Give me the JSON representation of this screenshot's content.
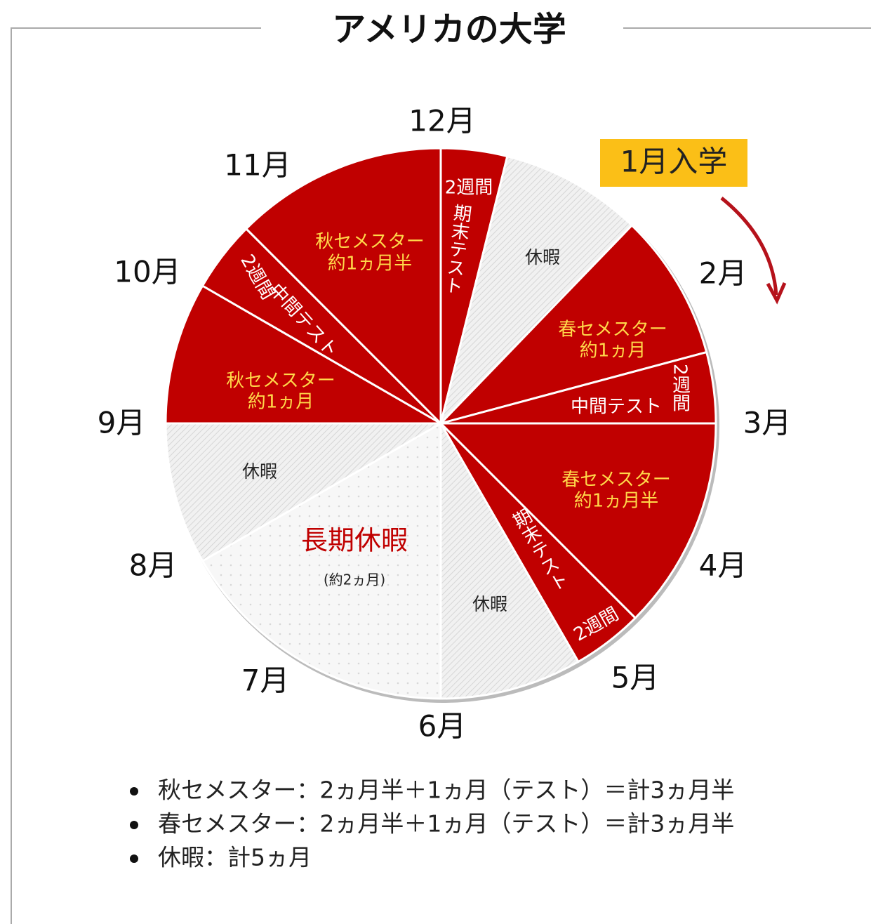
{
  "title": "アメリカの大学",
  "callout": "1月入学",
  "months": [
    "2月",
    "3月",
    "4月",
    "5月",
    "6月",
    "7月",
    "8月",
    "9月",
    "10月",
    "11月",
    "12月"
  ],
  "segments": [
    {
      "texts": [
        "2週間",
        "期末テスト"
      ]
    },
    {
      "texts": [
        "休暇"
      ]
    },
    {
      "texts": [
        "春セメスター",
        "約1ヵ月"
      ]
    },
    {
      "texts": [
        "中間テスト",
        "2週間"
      ]
    },
    {
      "texts": [
        "春セメスター",
        "約1ヵ月半"
      ]
    },
    {
      "texts": [
        "期末テスト",
        "2週間"
      ]
    },
    {
      "texts": [
        "休暇"
      ]
    },
    {
      "texts": [
        "長期休暇",
        "(約2ヵ月)"
      ]
    },
    {
      "texts": [
        "休暇"
      ]
    },
    {
      "texts": [
        "秋セメスター",
        "約1ヵ月"
      ]
    },
    {
      "texts": [
        "2週間",
        "中間テスト"
      ]
    },
    {
      "texts": [
        "秋セメスター",
        "約1ヵ月半"
      ]
    }
  ],
  "notes": [
    "秋セメスター：2ヵ月半＋1ヵ月（テスト）＝計3ヵ月半",
    "春セメスター：2ヵ月半＋1ヵ月（テスト）＝計3ヵ月半",
    "休暇：計5ヵ月"
  ]
}
